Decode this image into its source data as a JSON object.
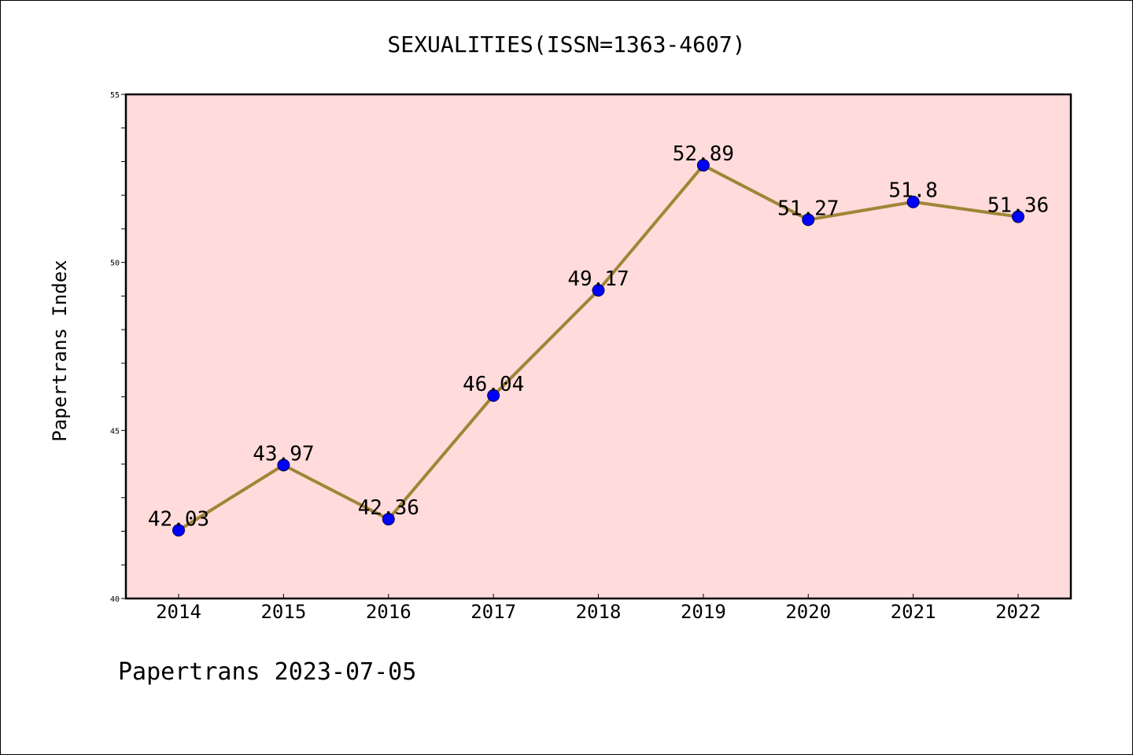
{
  "chart_data": {
    "type": "line",
    "title": "SEXUALITIES(ISSN=1363-4607)",
    "xlabel": "",
    "ylabel": "Papertrans Index",
    "categories": [
      "2014",
      "2015",
      "2016",
      "2017",
      "2018",
      "2019",
      "2020",
      "2021",
      "2022"
    ],
    "values": [
      42.03,
      43.97,
      42.36,
      46.04,
      49.17,
      52.89,
      51.27,
      51.8,
      51.36
    ],
    "data_labels": [
      "42.03",
      "43.97",
      "42.36",
      "46.04",
      "49.17",
      "52.89",
      "51.27",
      "51.8",
      "51.36"
    ],
    "ylim": [
      40,
      55
    ],
    "yticks": [
      40,
      45,
      50,
      55
    ],
    "ytick_labels": [
      "40",
      "45",
      "50",
      "55"
    ],
    "y_minor_step": 1,
    "grid": false,
    "colors": {
      "plot_background": "#ffdcdb",
      "line": "#a08537",
      "marker": "#0000ff"
    }
  },
  "footer": "Papertrans 2023-07-05"
}
